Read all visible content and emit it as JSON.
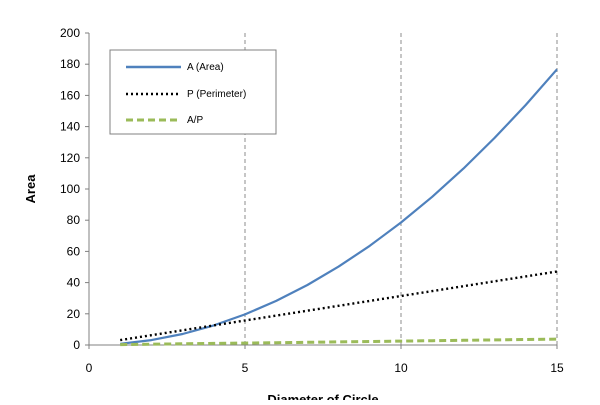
{
  "chart_data": {
    "type": "line",
    "title": "",
    "xlabel": "Diameter of Circle",
    "ylabel": "Area",
    "xlim": [
      0,
      15
    ],
    "ylim": [
      0,
      200
    ],
    "xticks": [
      0,
      5,
      10,
      15
    ],
    "yticks": [
      0,
      20,
      40,
      60,
      80,
      100,
      120,
      140,
      160,
      180,
      200
    ],
    "grid": {
      "x": true,
      "y": false,
      "style": "dashed"
    },
    "legend_position": "top-left",
    "series": [
      {
        "name": "A (Area)",
        "color": "#4f81bd",
        "style": "solid",
        "x": [
          1,
          2,
          3,
          4,
          5,
          6,
          7,
          8,
          9,
          10,
          11,
          12,
          13,
          14,
          15
        ],
        "y": [
          0.79,
          3.14,
          7.07,
          12.57,
          19.63,
          28.27,
          38.48,
          50.27,
          63.62,
          78.54,
          95.03,
          113.1,
          132.73,
          153.94,
          176.71
        ]
      },
      {
        "name": "P (Perimeter)",
        "color": "#000000",
        "style": "dotted",
        "x": [
          1,
          2,
          3,
          4,
          5,
          6,
          7,
          8,
          9,
          10,
          11,
          12,
          13,
          14,
          15
        ],
        "y": [
          3.14,
          6.28,
          9.42,
          12.57,
          15.71,
          18.85,
          21.99,
          25.13,
          28.27,
          31.42,
          34.56,
          37.7,
          40.84,
          43.98,
          47.12
        ]
      },
      {
        "name": "A/P",
        "color": "#9bbb59",
        "style": "dashed",
        "x": [
          1,
          2,
          3,
          4,
          5,
          6,
          7,
          8,
          9,
          10,
          11,
          12,
          13,
          14,
          15
        ],
        "y": [
          0.25,
          0.5,
          0.75,
          1.0,
          1.25,
          1.5,
          1.75,
          2.0,
          2.25,
          2.5,
          2.75,
          3.0,
          3.25,
          3.5,
          3.75
        ]
      }
    ]
  }
}
